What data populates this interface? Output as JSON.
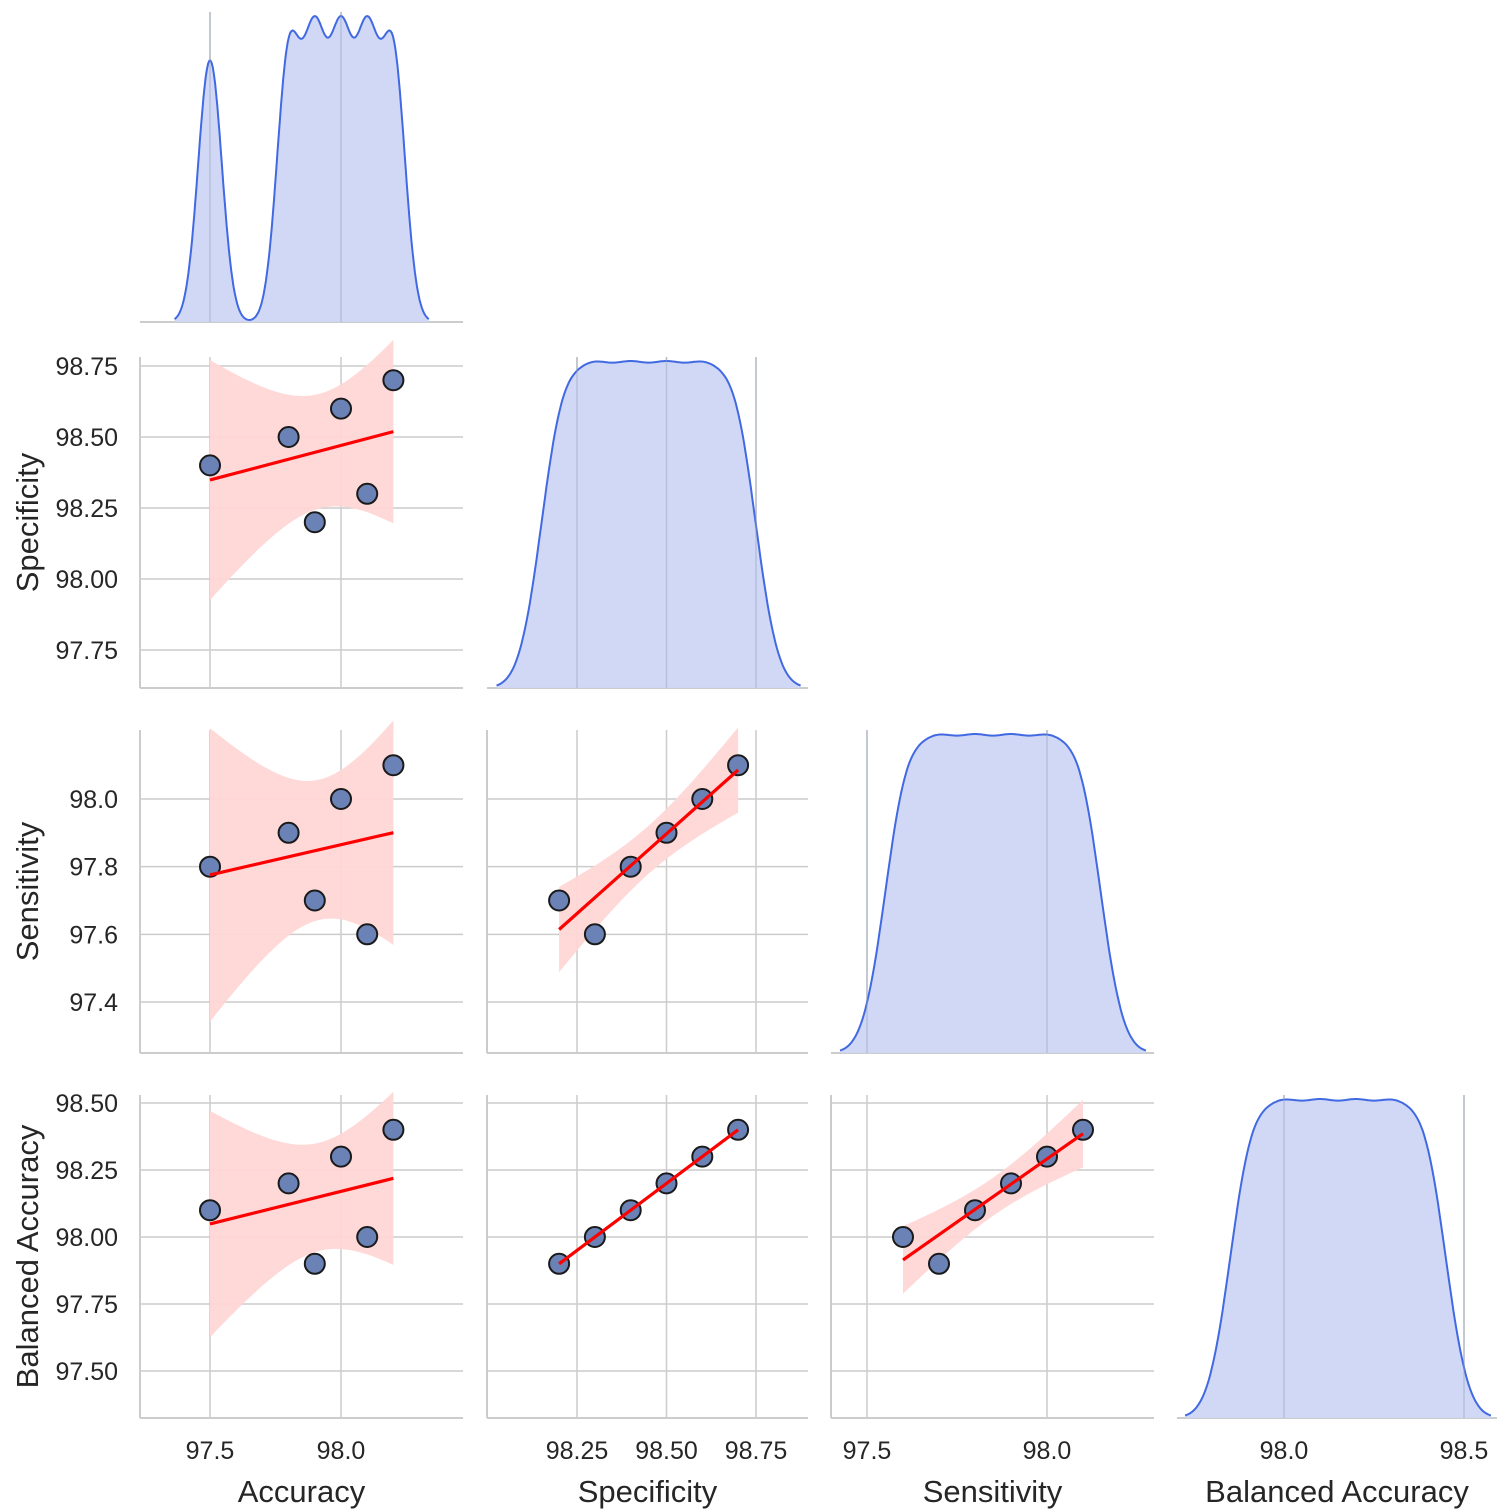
{
  "chart_data": {
    "type": "scatter",
    "variables": [
      "Accuracy",
      "Specificity",
      "Sensitivity",
      "Balanced Accuracy"
    ],
    "records": [
      {
        "Accuracy": 97.5,
        "Specificity": 98.4,
        "Sensitivity": 97.8,
        "Balanced Accuracy": 98.1
      },
      {
        "Accuracy": 97.8,
        "Specificity": 98.5,
        "Sensitivity": 97.9,
        "Balanced Accuracy": 98.2
      },
      {
        "Accuracy": 97.9,
        "Specificity": 98.2,
        "Sensitivity": 97.7,
        "Balanced Accuracy": 97.9
      },
      {
        "Accuracy": 98.0,
        "Specificity": 98.6,
        "Sensitivity": 98.0,
        "Balanced Accuracy": 98.3
      },
      {
        "Accuracy": 98.1,
        "Specificity": 98.3,
        "Sensitivity": 97.6,
        "Balanced Accuracy": 98.0
      },
      {
        "Accuracy": 98.2,
        "Specificity": 98.7,
        "Sensitivity": 98.1,
        "Balanced Accuracy": 98.4
      }
    ],
    "x_axes": [
      {
        "variable": "Accuracy",
        "ticks": [
          "97.5",
          "98.0"
        ]
      },
      {
        "variable": "Specificity",
        "ticks": [
          "98.25",
          "98.50",
          "98.75"
        ]
      },
      {
        "variable": "Sensitivity",
        "ticks": [
          "97.5",
          "98.0"
        ]
      },
      {
        "variable": "Balanced Accuracy",
        "ticks": [
          "98.0",
          "98.5"
        ]
      }
    ],
    "y_axes": [
      {
        "variable": "Specificity",
        "ticks": [
          "97.75",
          "98.00",
          "98.25",
          "98.50",
          "98.75"
        ]
      },
      {
        "variable": "Sensitivity",
        "ticks": [
          "97.4",
          "97.6",
          "97.8",
          "98.0"
        ]
      },
      {
        "variable": "Balanced Accuracy",
        "ticks": [
          "97.50",
          "97.75",
          "98.00",
          "98.25",
          "98.50"
        ]
      }
    ],
    "layout": "lower-triangle pair plot",
    "diagonal": "kde",
    "off_diagonal": "scatter with linear regression fit and confidence band",
    "grid": true,
    "colors": {
      "kde_fill": "#cdd6f5",
      "kde_line": "#4169e1",
      "point_fill": "#6a82b5",
      "point_edge": "#1a1a1a",
      "fit_line": "#ff0000",
      "band": "#ffd6d6"
    }
  }
}
